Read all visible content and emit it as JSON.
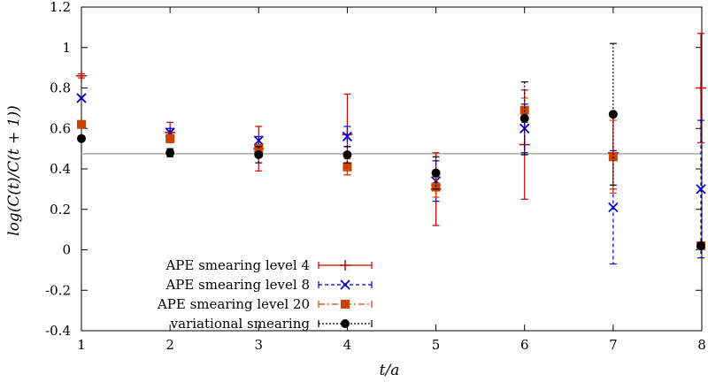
{
  "chart_data": {
    "type": "scatter",
    "title": "",
    "xlabel": "t/a",
    "ylabel": "log(C(t)/C(t + 1))",
    "xlim": [
      1,
      8
    ],
    "ylim": [
      -0.4,
      1.2
    ],
    "xticks": [
      1,
      2,
      3,
      4,
      5,
      6,
      7,
      8
    ],
    "yticks": [
      -0.4,
      -0.2,
      0,
      0.2,
      0.4,
      0.6,
      0.8,
      1,
      1.2
    ],
    "xtick_labels": [
      "1",
      "2",
      "3",
      "4",
      "5",
      "6",
      "7",
      "8"
    ],
    "ytick_labels": [
      "-0.4",
      "-0.2",
      "0",
      "0.2",
      "0.4",
      "0.6",
      "0.8",
      "1",
      "1.2"
    ],
    "reference_line": 0.475,
    "legend_position": "bottom-left",
    "series": [
      {
        "name": "APE smearing level 4",
        "color": "#cc0000",
        "marker": "plus",
        "line": "solid",
        "x": [
          1.0,
          2.0,
          3.0,
          4.0,
          5.0,
          6.0,
          7.0,
          8.0
        ],
        "y": [
          0.86,
          0.58,
          0.5,
          0.57,
          0.3,
          0.52,
          0.48,
          0.8
        ],
        "err": [
          0.01,
          0.05,
          0.11,
          0.2,
          0.18,
          0.27,
          0.18,
          0.27
        ]
      },
      {
        "name": "APE smearing level 8",
        "color": "#0000cc",
        "marker": "cross",
        "line": "dashed",
        "x": [
          1.0,
          2.0,
          3.0,
          4.0,
          5.0,
          6.0,
          7.0,
          8.0
        ],
        "y": [
          0.75,
          0.58,
          0.54,
          0.56,
          0.34,
          0.6,
          0.21,
          0.3
        ],
        "err": [
          0.0,
          0.02,
          0.02,
          0.05,
          0.1,
          0.12,
          0.28,
          0.34
        ]
      },
      {
        "name": "APE smearing level 20",
        "color": "#cc4400",
        "marker": "square",
        "line": "dashdot",
        "x": [
          1.0,
          2.0,
          3.0,
          4.0,
          5.0,
          6.0,
          7.0,
          8.0
        ],
        "y": [
          0.62,
          0.55,
          0.5,
          0.41,
          0.31,
          0.69,
          0.46,
          0.02
        ],
        "err": [
          0.0,
          0.02,
          0.02,
          0.04,
          0.05,
          0.06,
          0.18,
          0.0
        ]
      },
      {
        "name": "variational smearing",
        "color": "#000000",
        "marker": "circle",
        "line": "dotted",
        "x": [
          1.0,
          2.0,
          3.0,
          4.0,
          5.0,
          6.0,
          7.0,
          8.0
        ],
        "y": [
          0.55,
          0.48,
          0.47,
          0.47,
          0.38,
          0.65,
          0.67,
          0.02
        ],
        "err": [
          0.0,
          0.02,
          0.04,
          0.04,
          0.08,
          0.18,
          0.35,
          0.0
        ]
      }
    ]
  }
}
